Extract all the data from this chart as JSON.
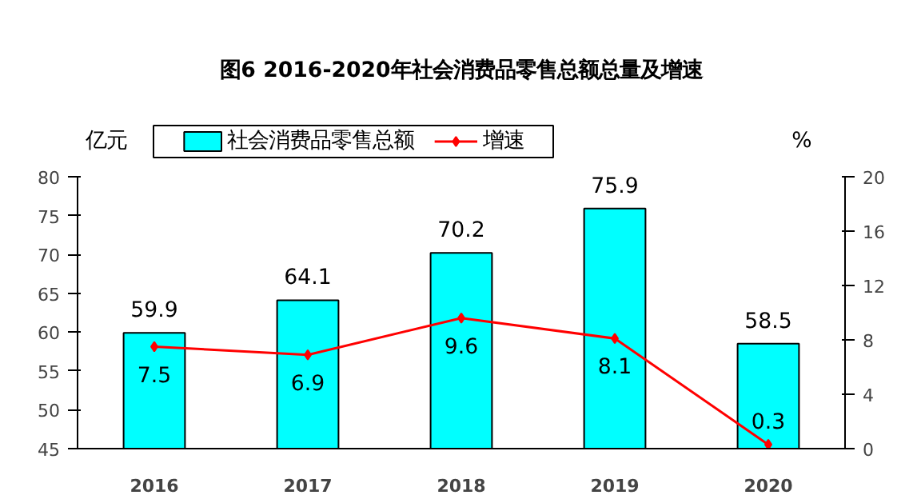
{
  "chart_data": {
    "type": "bar",
    "title": "图6 2016-2020年社会消费品零售总额总量及增速",
    "ylabel": "亿元",
    "y2label": "%",
    "categories": [
      "2016",
      "2017",
      "2018",
      "2019",
      "2020"
    ],
    "series": [
      {
        "name": "社会消费品零售总额",
        "type": "bar",
        "color": "#00ffff",
        "values": [
          59.9,
          64.1,
          70.2,
          75.9,
          58.5
        ]
      },
      {
        "name": "增速",
        "type": "line",
        "axis": "y2",
        "color": "#ff0000",
        "marker": "diamond",
        "values": [
          7.5,
          6.9,
          9.6,
          8.1,
          0.3
        ]
      }
    ],
    "ylim": [
      45,
      80
    ],
    "yticks": [
      45,
      50,
      55,
      60,
      65,
      70,
      75,
      80
    ],
    "y2lim": [
      0,
      20
    ],
    "y2ticks": [
      0,
      4,
      8,
      12,
      16,
      20
    ],
    "data_labels": true,
    "grid": false,
    "legend": "top"
  }
}
